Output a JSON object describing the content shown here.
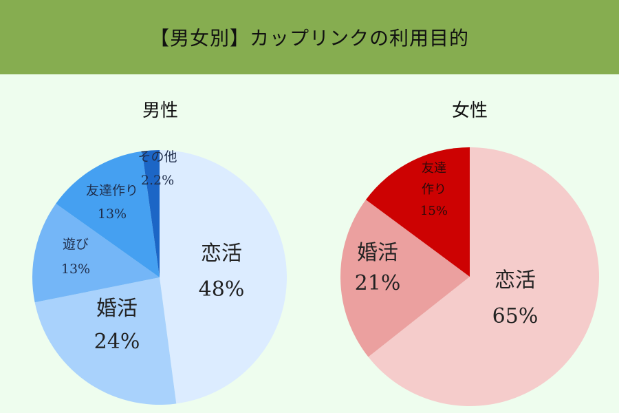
{
  "header": {
    "title": "【男女別】カップリンクの利用目的"
  },
  "chart_data": [
    {
      "type": "pie",
      "title": "男性",
      "slices": [
        {
          "label": "恋活",
          "value": 48,
          "value_label": "48%",
          "color": "#dcecff"
        },
        {
          "label": "婚活",
          "value": 24,
          "value_label": "24%",
          "color": "#a9d2fc"
        },
        {
          "label": "遊び",
          "value": 13,
          "value_label": "13%",
          "color": "#74b6f7"
        },
        {
          "label": "友達作り",
          "value": 13,
          "value_label": "13%",
          "color": "#45a0f1"
        },
        {
          "label": "その他",
          "value": 2.2,
          "value_label": "2.2%",
          "color": "#1c66c6"
        }
      ]
    },
    {
      "type": "pie",
      "title": "女性",
      "slices": [
        {
          "label": "恋活",
          "value": 65,
          "value_label": "65%",
          "color": "#f5cccb"
        },
        {
          "label": "婚活",
          "value": 21,
          "value_label": "21%",
          "color": "#eba09f"
        },
        {
          "label": "友達作り",
          "value": 15,
          "value_label": "15%",
          "label_lines": [
            "友達",
            "作り"
          ],
          "color": "#cd0202"
        }
      ]
    }
  ]
}
